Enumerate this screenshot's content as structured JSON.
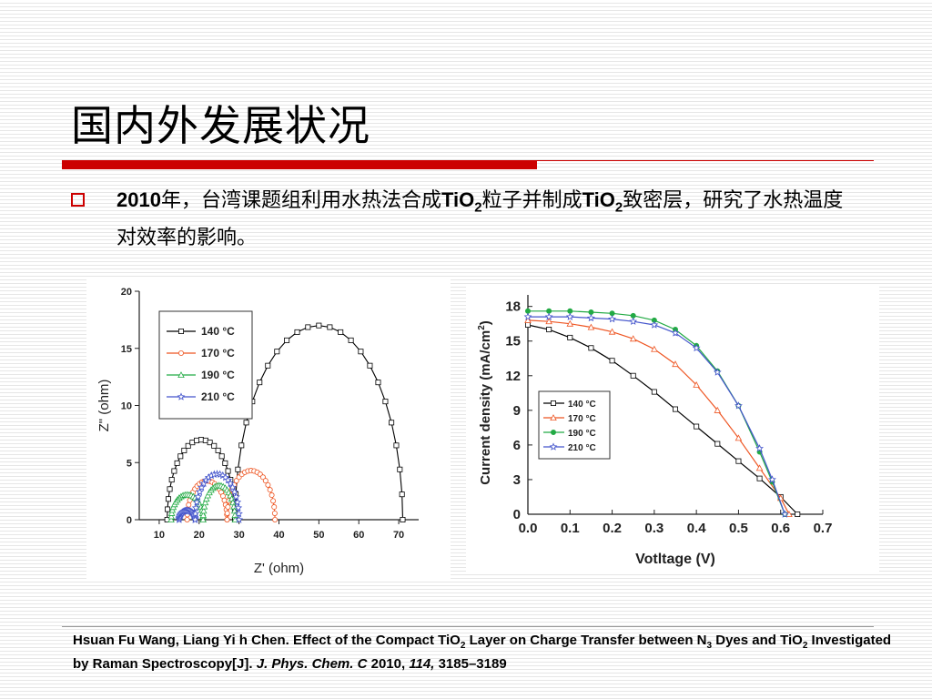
{
  "slide": {
    "title": "国内外发展状况",
    "bullet": {
      "year": "2010",
      "t1": "年，台湾课题组利用水热法合成",
      "tio": "TiO",
      "sub2": "2",
      "t2": "粒子并制成",
      "t3": "致密层，研究了水热温度对效率的影响。"
    },
    "reference": {
      "p1": "Hsuan Fu Wang, Liang Yi h Chen. Effect of the Compact TiO",
      "p2": " Layer on Charge Transfer between N",
      "n_sub": "3",
      "p3": " Dyes and TiO",
      "p4": " Investigated by Raman Spectroscopy[J]. ",
      "journal": "J. Phys. Chem. C",
      "p5": " 2010, ",
      "volume": "114,",
      "p6": " 3185–3189"
    }
  },
  "colors": {
    "accent": "#cc0000",
    "s140": "#000000",
    "s170": "#ee5522",
    "s190": "#22aa44",
    "s210": "#4455cc"
  },
  "chart_data": [
    {
      "type": "scatter",
      "xlabel": "Z' (ohm)",
      "ylabel": "Z\" (ohm)",
      "xlim": [
        5,
        75
      ],
      "ylim": [
        0,
        20
      ],
      "xticks": [
        10,
        20,
        30,
        40,
        50,
        60,
        70
      ],
      "yticks": [
        0,
        5,
        10,
        15,
        20
      ],
      "legend_position": "top-left",
      "series": [
        {
          "name": "140 °C",
          "marker": "square",
          "color": "#000000",
          "arcs": [
            {
              "x0": 12,
              "x1": 29,
              "peak": 7.0
            },
            {
              "x0": 29,
              "x1": 71,
              "peak": 17.0
            }
          ]
        },
        {
          "name": "170 °C",
          "marker": "circle",
          "color": "#ee5522",
          "arcs": [
            {
              "x0": 17,
              "x1": 27,
              "peak": 3.4
            },
            {
              "x0": 27,
              "x1": 39,
              "peak": 4.3
            }
          ]
        },
        {
          "name": "190 °C",
          "marker": "triangle",
          "color": "#22aa44",
          "arcs": [
            {
              "x0": 13,
              "x1": 21,
              "peak": 2.2
            },
            {
              "x0": 21,
              "x1": 29,
              "peak": 3.0
            }
          ]
        },
        {
          "name": "210 °C",
          "marker": "star",
          "color": "#4455cc",
          "arcs": [
            {
              "x0": 15,
              "x1": 19,
              "peak": 0.8
            },
            {
              "x0": 19,
              "x1": 30,
              "peak": 4.0
            }
          ]
        }
      ]
    },
    {
      "type": "line",
      "xlabel": "Votltage (V)",
      "ylabel": "Current density (mA/cm",
      "ylabel_sup": "2",
      "ylabel_close": ")",
      "xlim": [
        0,
        0.7
      ],
      "ylim": [
        0,
        19
      ],
      "xticks": [
        "0.0",
        "0.1",
        "0.2",
        "0.3",
        "0.4",
        "0.5",
        "0.6",
        "0.7"
      ],
      "yticks": [
        0,
        3,
        6,
        9,
        12,
        15,
        18
      ],
      "legend_position": "center-left",
      "series": [
        {
          "name": "140 °C",
          "marker": "square",
          "color": "#000000",
          "x": [
            0,
            0.05,
            0.1,
            0.15,
            0.2,
            0.25,
            0.3,
            0.35,
            0.4,
            0.45,
            0.5,
            0.55,
            0.6,
            0.64
          ],
          "y": [
            16.4,
            16.0,
            15.3,
            14.4,
            13.3,
            12.0,
            10.6,
            9.1,
            7.6,
            6.1,
            4.6,
            3.1,
            1.5,
            0
          ]
        },
        {
          "name": "170 °C",
          "marker": "triangle",
          "color": "#ee5522",
          "x": [
            0,
            0.05,
            0.1,
            0.15,
            0.2,
            0.25,
            0.3,
            0.35,
            0.4,
            0.45,
            0.5,
            0.55,
            0.6,
            0.62
          ],
          "y": [
            16.8,
            16.7,
            16.5,
            16.2,
            15.8,
            15.2,
            14.3,
            13.0,
            11.2,
            9.0,
            6.6,
            4.0,
            1.4,
            0
          ]
        },
        {
          "name": "190 °C",
          "marker": "dot",
          "color": "#22aa44",
          "x": [
            0,
            0.05,
            0.1,
            0.15,
            0.2,
            0.25,
            0.3,
            0.35,
            0.4,
            0.45,
            0.5,
            0.55,
            0.58,
            0.61
          ],
          "y": [
            17.6,
            17.6,
            17.6,
            17.5,
            17.4,
            17.2,
            16.8,
            16.0,
            14.6,
            12.4,
            9.4,
            5.4,
            2.8,
            0
          ]
        },
        {
          "name": "210 °C",
          "marker": "star",
          "color": "#4455cc",
          "x": [
            0,
            0.05,
            0.1,
            0.15,
            0.2,
            0.25,
            0.3,
            0.35,
            0.4,
            0.45,
            0.5,
            0.55,
            0.58,
            0.61
          ],
          "y": [
            17.1,
            17.1,
            17.1,
            17.0,
            16.9,
            16.7,
            16.4,
            15.7,
            14.4,
            12.3,
            9.4,
            5.7,
            3.0,
            0
          ]
        }
      ]
    }
  ]
}
